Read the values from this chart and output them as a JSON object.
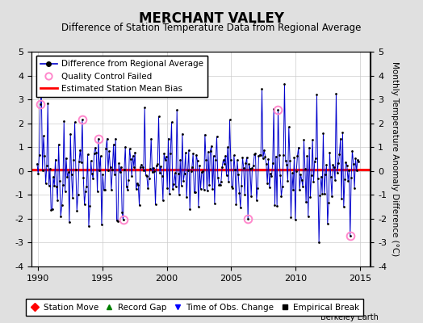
{
  "title": "MERCHANT VALLEY",
  "subtitle": "Difference of Station Temperature Data from Regional Average",
  "ylabel": "Monthly Temperature Anomaly Difference (°C)",
  "xlabel_years": [
    1990,
    1995,
    2000,
    2005,
    2010,
    2015
  ],
  "ylim": [
    -4,
    5
  ],
  "yticks": [
    -4,
    -3,
    -2,
    -1,
    0,
    1,
    2,
    3,
    4,
    5
  ],
  "mean_bias": 0.05,
  "background_color": "#e0e0e0",
  "plot_bg_color": "#ffffff",
  "line_color": "#0000cc",
  "bias_color": "#ff0000",
  "qc_color": "#ff88cc",
  "marker_color": "#000000",
  "title_fontsize": 12,
  "subtitle_fontsize": 8.5,
  "ylabel_fontsize": 7.5,
  "tick_fontsize": 8,
  "legend_fontsize": 7.5,
  "seed": 42,
  "n_months": 300,
  "start_year": 1989.917,
  "qc_indices": [
    3,
    42,
    57,
    80,
    196,
    224,
    291
  ],
  "qc_values": [
    2.8,
    2.15,
    1.35,
    -2.05,
    -2.0,
    2.55,
    -2.7
  ]
}
